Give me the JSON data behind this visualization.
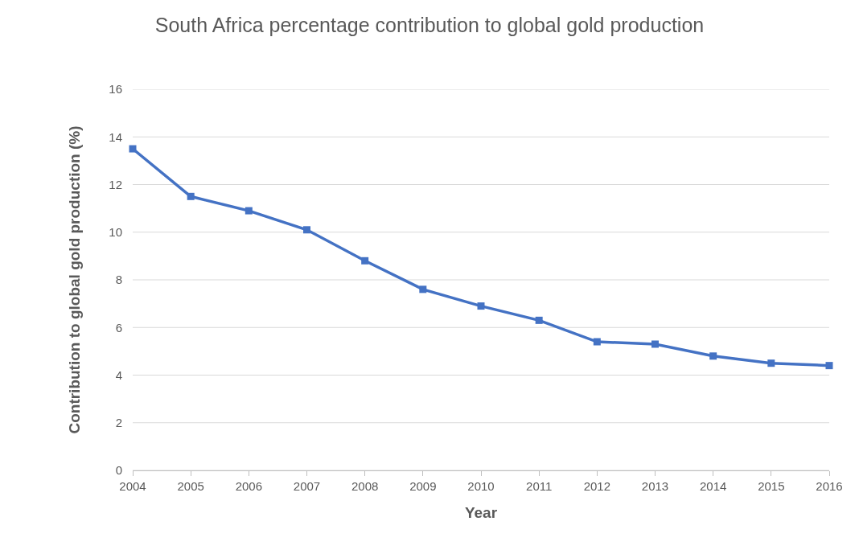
{
  "chart_data": {
    "type": "line",
    "title": "South Africa percentage contribution to global gold production",
    "xlabel": "Year",
    "ylabel": "Contribution to global gold production (%)",
    "x": [
      2004,
      2005,
      2006,
      2007,
      2008,
      2009,
      2010,
      2011,
      2012,
      2013,
      2014,
      2015,
      2016
    ],
    "series": [
      {
        "color": "#4472c4",
        "values": [
          13.5,
          11.5,
          10.9,
          10.1,
          8.8,
          7.6,
          6.9,
          6.3,
          5.4,
          5.3,
          4.8,
          4.5,
          4.4
        ]
      }
    ],
    "xlim": [
      2004,
      2016
    ],
    "xticks": [
      2004,
      2005,
      2006,
      2007,
      2008,
      2009,
      2010,
      2011,
      2012,
      2013,
      2014,
      2015,
      2016
    ],
    "ylim": [
      0,
      16
    ],
    "yticks": [
      0,
      2,
      4,
      6,
      8,
      10,
      12,
      14,
      16
    ],
    "grid": "y",
    "marker": "square",
    "line_style": "solid"
  }
}
